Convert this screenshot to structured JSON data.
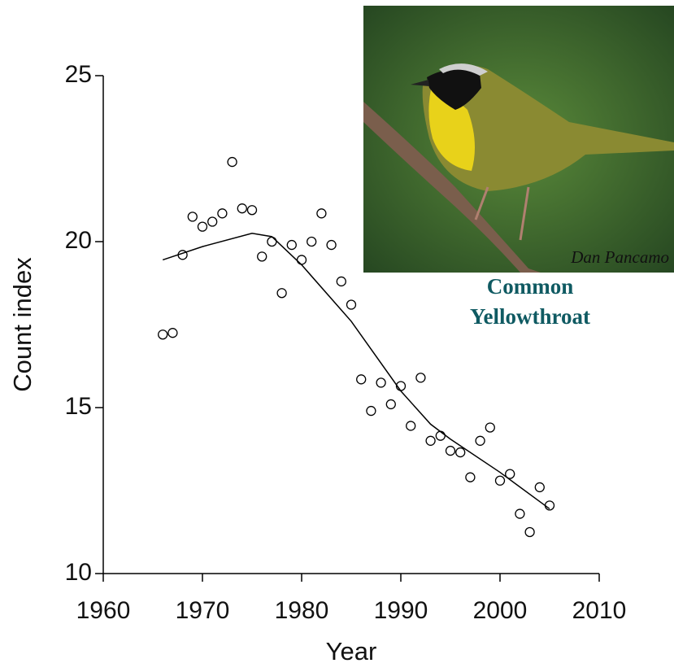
{
  "chart_data": {
    "type": "scatter",
    "xlabel": "Year",
    "ylabel": "Count index",
    "xlim": [
      1960,
      2010
    ],
    "xticks": [
      1960,
      1970,
      1980,
      1990,
      2000,
      2010
    ],
    "ylim": [
      10,
      25
    ],
    "yticks": [
      10,
      15,
      20,
      25
    ],
    "series": [
      {
        "marker": "circle",
        "color": "#000000",
        "x": [
          1966,
          1967,
          1968,
          1969,
          1970,
          1971,
          1972,
          1973,
          1974,
          1975,
          1976,
          1977,
          1978,
          1979,
          1980,
          1981,
          1982,
          1983,
          1984,
          1985,
          1986,
          1987,
          1988,
          1989,
          1990,
          1991,
          1992,
          1993,
          1994,
          1995,
          1996,
          1997,
          1998,
          1999,
          2000,
          2001,
          2002,
          2003,
          2004,
          2005
        ],
        "values": [
          17.2,
          17.25,
          19.6,
          20.75,
          20.45,
          20.6,
          20.85,
          22.4,
          21.0,
          20.95,
          19.55,
          20.0,
          18.45,
          19.9,
          19.45,
          20.0,
          20.85,
          19.9,
          18.8,
          18.1,
          15.85,
          14.9,
          15.75,
          15.1,
          15.65,
          14.45,
          15.9,
          14.0,
          14.15,
          13.7,
          13.65,
          12.9,
          14.0,
          14.4,
          12.8,
          13.0,
          11.8,
          11.25,
          12.6,
          12.05
        ]
      },
      {
        "marker": "line",
        "color": "#000000",
        "x": [
          1966,
          1970,
          1975,
          1977,
          1980,
          1985,
          1990,
          1993,
          1995,
          2000,
          2005
        ],
        "values": [
          19.45,
          19.85,
          20.25,
          20.15,
          19.3,
          17.6,
          15.5,
          14.5,
          14.05,
          13.05,
          11.95
        ]
      }
    ]
  },
  "photo": {
    "credit": "Dan Pancamo",
    "caption": [
      "Common",
      "Yellowthroat"
    ]
  }
}
